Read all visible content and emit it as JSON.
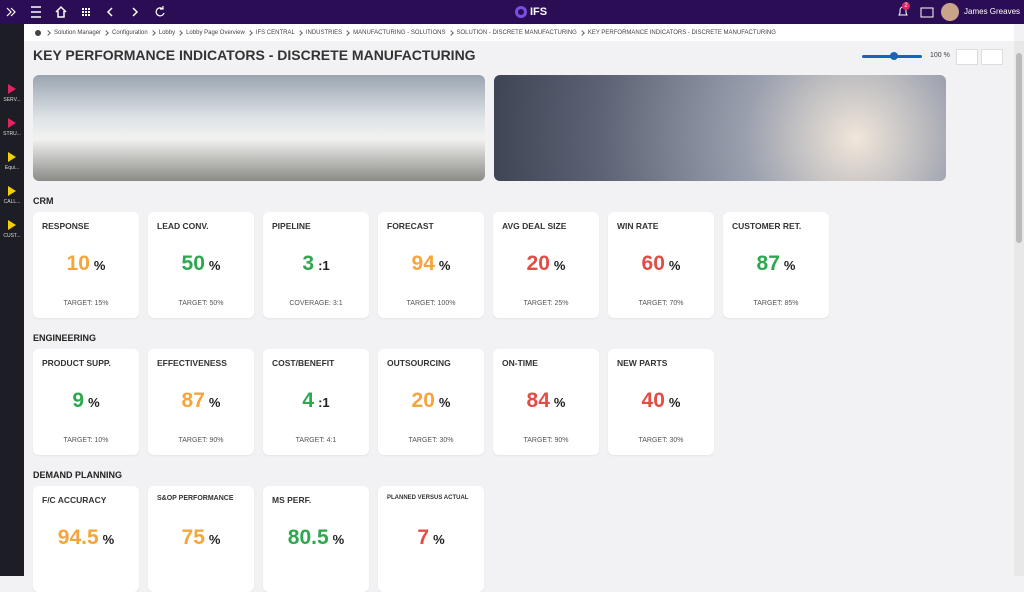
{
  "topbar": {
    "logo": "IFS",
    "notifications": "2",
    "user": "James Greaves"
  },
  "sidebar": [
    "SERV...",
    "STRU...",
    "Equi...",
    "CALL...",
    "CUST..."
  ],
  "breadcrumb": [
    "Solution Manager",
    "Configuration",
    "Lobby",
    "Lobby Page Overview",
    "IFS CENTRAL",
    "INDUSTRIES",
    "MANUFACTURING - SOLUTIONS",
    "SOLUTION - DISCRETE MANUFACTURING",
    "KEY PERFORMANCE INDICATORS - DISCRETE MANUFACTURING"
  ],
  "zoom": "100 %",
  "title": "KEY PERFORMANCE INDICATORS - DISCRETE MANUFACTURING",
  "sections": [
    {
      "name": "CRM",
      "cards": [
        {
          "title": "RESPONSE",
          "value": 10,
          "unit": "%",
          "target": "TARGET: 15%",
          "color": "#f5a53a"
        },
        {
          "title": "LEAD CONV.",
          "value": 50,
          "unit": "%",
          "target": "TARGET: 50%",
          "color": "#2ea84f"
        },
        {
          "title": "PIPELINE",
          "value": 3,
          "unit": ":1",
          "target": "COVERAGE: 3:1",
          "color": "#2ea84f"
        },
        {
          "title": "FORECAST",
          "value": 94,
          "unit": "%",
          "target": "TARGET: 100%",
          "color": "#f5a53a"
        },
        {
          "title": "AVG DEAL SIZE",
          "value": 20,
          "unit": "%",
          "target": "TARGET: 25%",
          "color": "#e04e45"
        },
        {
          "title": "WIN RATE",
          "value": 60,
          "unit": "%",
          "target": "TARGET: 70%",
          "color": "#e04e45"
        },
        {
          "title": "CUSTOMER RET.",
          "value": 87,
          "unit": "%",
          "target": "TARGET: 85%",
          "color": "#2ea84f"
        }
      ]
    },
    {
      "name": "ENGINEERING",
      "cards": [
        {
          "title": "PRODUCT SUPP.",
          "value": 9,
          "unit": "%",
          "target": "TARGET: 10%",
          "color": "#2ea84f"
        },
        {
          "title": "EFFECTIVENESS",
          "value": 87,
          "unit": "%",
          "target": "TARGET: 90%",
          "color": "#f5a53a"
        },
        {
          "title": "COST/BENEFIT",
          "value": 4,
          "unit": ":1",
          "target": "TARGET: 4:1",
          "color": "#2ea84f"
        },
        {
          "title": "OUTSOURCING",
          "value": 20,
          "unit": "%",
          "target": "TARGET: 30%",
          "color": "#f5a53a"
        },
        {
          "title": "ON-TIME",
          "value": 84,
          "unit": "%",
          "target": "TARGET: 90%",
          "color": "#e04e45"
        },
        {
          "title": "NEW PARTS",
          "value": 40,
          "unit": "%",
          "target": "TARGET: 30%",
          "color": "#e04e45"
        }
      ]
    },
    {
      "name": "DEMAND PLANNING",
      "cards": [
        {
          "title": "F/C ACCURACY",
          "value": 94.5,
          "unit": "%",
          "color": "#f5a53a"
        },
        {
          "title": "S&OP PERFORMANCE",
          "value": 75,
          "unit": "%",
          "color": "#f5a53a"
        },
        {
          "title": "MS PERF.",
          "value": 80.5,
          "unit": "%",
          "color": "#2ea84f"
        },
        {
          "title": "PLANNED VERSUS ACTUAL",
          "value": 7,
          "unit": "%",
          "color": "#e04e45"
        }
      ]
    }
  ]
}
